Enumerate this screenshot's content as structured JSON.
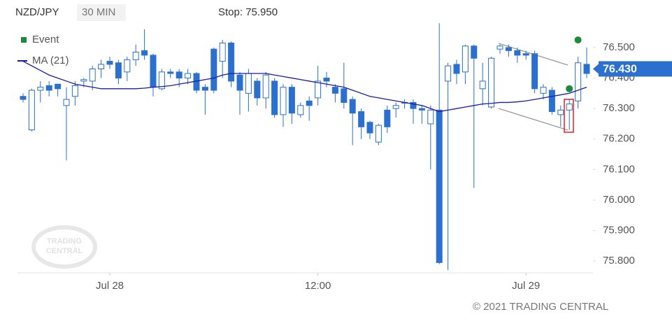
{
  "header": {
    "symbol": "NZD/JPY",
    "interval": "30 MIN",
    "stop": "Stop: 75.950"
  },
  "chart_data": {
    "type": "candlestick",
    "categories": [
      null,
      null,
      null,
      null,
      null,
      null,
      null,
      null,
      null,
      null,
      "Jul 28",
      null,
      null,
      null,
      null,
      null,
      null,
      null,
      null,
      null,
      null,
      null,
      null,
      null,
      null,
      null,
      null,
      null,
      null,
      null,
      null,
      null,
      null,
      null,
      "12:00",
      null,
      null,
      null,
      null,
      null,
      null,
      null,
      null,
      null,
      null,
      null,
      null,
      null,
      null,
      null,
      null,
      null,
      null,
      null,
      null,
      null,
      null,
      null,
      "Jul 29",
      null,
      null,
      null,
      null,
      null,
      null,
      null
    ],
    "open": [
      76.34,
      76.23,
      76.36,
      76.375,
      76.38,
      76.31,
      76.34,
      76.39,
      76.39,
      76.43,
      76.455,
      76.45,
      76.42,
      76.46,
      76.49,
      76.475,
      76.365,
      76.42,
      76.42,
      76.4,
      76.415,
      76.37,
      76.495,
      76.455,
      76.515,
      76.41,
      76.35,
      76.39,
      76.335,
      76.39,
      76.28,
      76.37,
      76.28,
      76.325,
      76.335,
      76.4,
      76.37,
      76.365,
      76.33,
      76.29,
      76.255,
      76.19,
      76.295,
      76.3,
      76.32,
      76.32,
      76.3,
      76.25,
      76.295,
      76.39,
      76.445,
      76.42,
      76.505,
      76.365,
      76.305,
      76.495,
      76.5,
      76.49,
      76.48,
      76.48,
      76.35,
      76.36,
      76.28,
      76.295,
      76.325,
      76.445
    ],
    "high": [
      76.35,
      76.365,
      76.39,
      76.39,
      76.38,
      76.37,
      76.39,
      76.4,
      76.44,
      76.46,
      76.47,
      76.46,
      76.47,
      76.51,
      76.56,
      76.48,
      76.43,
      76.43,
      76.43,
      76.43,
      76.42,
      76.38,
      76.5,
      76.525,
      76.52,
      76.42,
      76.43,
      76.4,
      76.42,
      76.4,
      76.38,
      76.38,
      76.32,
      76.34,
      76.44,
      76.42,
      76.38,
      76.45,
      76.34,
      76.3,
      76.26,
      76.25,
      76.31,
      76.32,
      76.33,
      76.33,
      76.31,
      76.31,
      76.58,
      76.45,
      76.46,
      76.51,
      76.51,
      76.45,
      76.47,
      76.51,
      76.51,
      76.5,
      76.49,
      76.49,
      76.38,
      76.37,
      76.31,
      76.33,
      76.47,
      76.5
    ],
    "low": [
      76.32,
      76.225,
      76.32,
      76.34,
      76.34,
      76.13,
      76.31,
      76.37,
      76.36,
      76.4,
      76.43,
      76.38,
      76.39,
      76.44,
      76.46,
      76.34,
      76.36,
      76.4,
      76.37,
      76.38,
      76.35,
      76.28,
      76.35,
      76.4,
      76.37,
      76.28,
      76.29,
      76.31,
      76.3,
      76.27,
      76.24,
      76.25,
      76.27,
      76.26,
      76.31,
      76.37,
      76.32,
      76.3,
      76.18,
      76.2,
      76.2,
      76.18,
      76.22,
      76.27,
      76.3,
      76.25,
      76.25,
      76.1,
      75.79,
      75.77,
      76.38,
      76.38,
      76.04,
      76.31,
      76.3,
      76.48,
      76.47,
      76.45,
      76.46,
      76.35,
      76.33,
      76.28,
      76.24,
      76.23,
      76.3,
      76.4
    ],
    "close": [
      76.33,
      76.36,
      76.37,
      76.36,
      76.365,
      76.33,
      76.375,
      76.395,
      76.43,
      76.445,
      76.445,
      76.4,
      76.46,
      76.485,
      76.475,
      76.37,
      76.42,
      76.415,
      76.4,
      76.415,
      76.36,
      76.36,
      76.36,
      76.515,
      76.39,
      76.36,
      76.415,
      76.335,
      76.41,
      76.28,
      76.37,
      76.285,
      76.31,
      76.31,
      76.39,
      76.39,
      76.35,
      76.32,
      76.285,
      76.24,
      76.22,
      76.245,
      76.24,
      76.31,
      76.32,
      76.3,
      76.295,
      76.295,
      75.795,
      76.44,
      76.415,
      76.505,
      76.465,
      76.39,
      76.465,
      76.505,
      76.49,
      76.475,
      76.475,
      76.365,
      76.37,
      76.29,
      76.295,
      76.315,
      76.45,
      76.415
    ],
    "up_color": "#ffffff",
    "down_color": "#2b70cf",
    "edge_color": "#2b70cf",
    "ma": {
      "name": "MA (21)",
      "color": "#1c1caa",
      "values": [
        76.455,
        76.44,
        76.425,
        76.41,
        76.4,
        76.39,
        76.38,
        76.375,
        76.37,
        76.365,
        76.365,
        76.365,
        76.365,
        76.365,
        76.367,
        76.37,
        76.372,
        76.375,
        76.38,
        76.385,
        76.39,
        76.395,
        76.4,
        76.41,
        76.415,
        76.415,
        76.415,
        76.415,
        76.415,
        76.41,
        76.405,
        76.4,
        76.395,
        76.39,
        76.385,
        76.38,
        76.375,
        76.37,
        76.36,
        76.35,
        76.34,
        76.335,
        76.33,
        76.325,
        76.32,
        76.315,
        76.31,
        76.3,
        76.29,
        76.295,
        76.3,
        76.305,
        76.31,
        76.315,
        76.317,
        76.32,
        76.32,
        76.322,
        76.325,
        76.33,
        76.335,
        76.34,
        76.345,
        76.35,
        76.36,
        76.37
      ]
    },
    "events": {
      "name": "Event",
      "color": "#1f8a3c",
      "values": [
        null,
        null,
        null,
        null,
        null,
        null,
        null,
        null,
        null,
        null,
        null,
        null,
        null,
        null,
        null,
        null,
        null,
        null,
        null,
        null,
        null,
        null,
        null,
        null,
        null,
        null,
        null,
        null,
        null,
        null,
        null,
        null,
        null,
        null,
        null,
        null,
        null,
        null,
        null,
        null,
        null,
        null,
        null,
        null,
        null,
        null,
        null,
        null,
        null,
        null,
        null,
        null,
        null,
        null,
        null,
        null,
        null,
        null,
        null,
        null,
        null,
        null,
        null,
        76.365,
        76.525,
        null
      ]
    },
    "last_price": {
      "value": 76.43,
      "label": "76.430"
    },
    "ylim": [
      75.76,
      76.58
    ],
    "yticks": [
      {
        "value": 75.8,
        "label": "75.800"
      },
      {
        "value": 75.9,
        "label": "75.900"
      },
      {
        "value": 76.0,
        "label": "76.000"
      },
      {
        "value": 76.1,
        "label": "76.100"
      },
      {
        "value": 76.2,
        "label": "76.200"
      },
      {
        "value": 76.3,
        "label": "76.300"
      },
      {
        "value": 76.4,
        "label": "76.400"
      },
      {
        "value": 76.5,
        "label": "76.500"
      }
    ],
    "legend": "top-left",
    "watermark": [
      "TRADING",
      "CENTRAL"
    ],
    "copyright": "© 2021 TRADING CENTRAL"
  }
}
